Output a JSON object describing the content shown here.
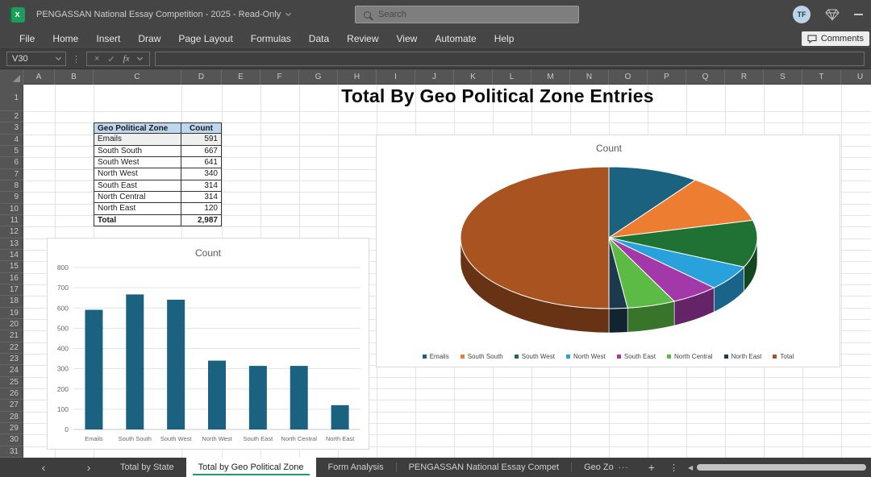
{
  "titlebar": {
    "app_icon_letter": "x",
    "document_title": "PENGASSAN National Essay Competition - 2025 - Read-Only",
    "search_placeholder": "Search",
    "avatar_initials": "TF"
  },
  "menubar": {
    "items": [
      "File",
      "Home",
      "Insert",
      "Draw",
      "Page Layout",
      "Formulas",
      "Data",
      "Review",
      "View",
      "Automate",
      "Help"
    ],
    "comments_label": "Comments"
  },
  "formula_bar": {
    "name_box": "V30",
    "dots_glyph": "⋮",
    "cancel_glyph": "×",
    "enter_glyph": "✓",
    "fx_label": "fx",
    "formula_value": ""
  },
  "grid": {
    "columns": [
      "A",
      "B",
      "C",
      "D",
      "E",
      "F",
      "G",
      "H",
      "I",
      "J",
      "K",
      "L",
      "M",
      "N",
      "O",
      "P",
      "Q",
      "R",
      "S",
      "T",
      "U"
    ],
    "rows": [
      1,
      2,
      3,
      4,
      5,
      6,
      7,
      8,
      9,
      10,
      11,
      12,
      13,
      14,
      15,
      16,
      17,
      18,
      19,
      20,
      21,
      22,
      23,
      24,
      25,
      26,
      27,
      28,
      29,
      30,
      31
    ],
    "sheet_title": "Total By Geo Political Zone Entries"
  },
  "table": {
    "headers": [
      "Geo Political Zone",
      "Count"
    ],
    "rows": [
      [
        "Emails",
        "591"
      ],
      [
        "South South",
        "667"
      ],
      [
        "South West",
        "641"
      ],
      [
        "North West",
        "340"
      ],
      [
        "South East",
        "314"
      ],
      [
        "North Central",
        "314"
      ],
      [
        "North East",
        "120"
      ]
    ],
    "total_row": [
      "Total",
      "2,987"
    ],
    "header_fill": "#BDD7EE"
  },
  "chart_data": [
    {
      "type": "bar",
      "title": "Count",
      "categories": [
        "Emails",
        "South South",
        "South West",
        "North West",
        "South East",
        "North Central",
        "North East"
      ],
      "values": [
        591,
        667,
        641,
        340,
        314,
        314,
        120
      ],
      "ylim": [
        0,
        800
      ],
      "ytick_step": 100,
      "bar_color": "#1B6180",
      "grid": true,
      "legend": "none"
    },
    {
      "type": "pie",
      "style": "3d",
      "title": "Count",
      "labels": [
        "Emails",
        "South South",
        "South West",
        "North West",
        "South East",
        "North Central",
        "North East",
        "Total"
      ],
      "values": [
        591,
        667,
        641,
        340,
        314,
        314,
        120,
        2987
      ],
      "colors": [
        "#1B6180",
        "#ED7D31",
        "#1F7233",
        "#29A2DC",
        "#A338A8",
        "#5CBB45",
        "#1B3A4D",
        "#A85320"
      ],
      "legend_position": "bottom"
    }
  ],
  "sheet_tabs": {
    "prev_glyph": "‹",
    "next_glyph": "›",
    "tabs": [
      {
        "label": "Total by State",
        "active": false
      },
      {
        "label": "Total by Geo Political Zone",
        "active": true
      },
      {
        "label": "Form Analysis",
        "active": false
      },
      {
        "label": "PENGASSAN National Essay Compet",
        "active": false
      },
      {
        "label": "Geo Zo",
        "active": false,
        "overflow": "···"
      }
    ],
    "add_glyph": "+",
    "more_glyph": "⋮",
    "scroll_left_glyph": "◀"
  }
}
